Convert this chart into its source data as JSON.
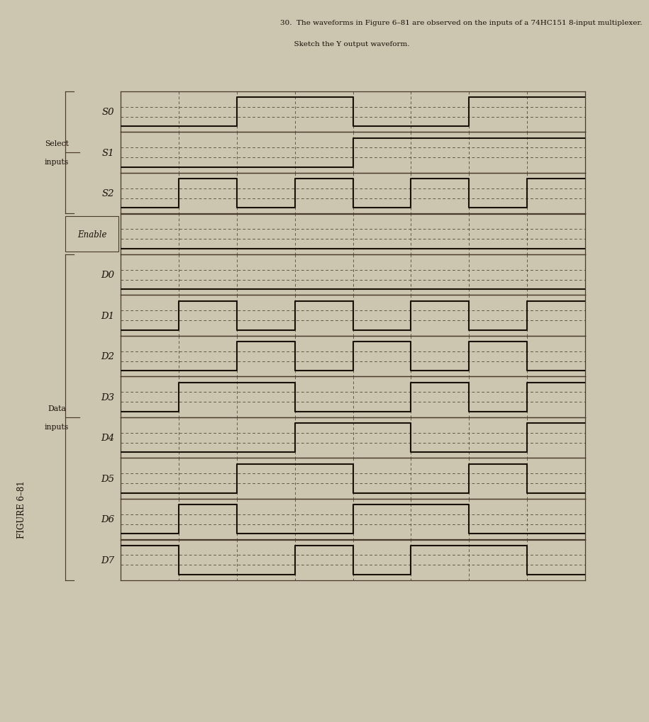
{
  "bg_color": "#ccc5b0",
  "grid_color": "#4a3a2a",
  "wave_color": "#1a1008",
  "text_color": "#1a1008",
  "signals": [
    "S0",
    "S1",
    "S2",
    "Enable",
    "D0",
    "D1",
    "D2",
    "D3",
    "D4",
    "D5",
    "D6",
    "D7"
  ],
  "num_cols": 8,
  "waveforms": {
    "S0": [
      0,
      0,
      1,
      1,
      0,
      0,
      1,
      1
    ],
    "S1": [
      0,
      0,
      0,
      0,
      1,
      1,
      1,
      1
    ],
    "S2": [
      0,
      1,
      0,
      1,
      0,
      1,
      0,
      1
    ],
    "Enable": [
      0,
      0,
      0,
      0,
      0,
      0,
      0,
      0
    ],
    "D0": [
      0,
      0,
      0,
      0,
      0,
      0,
      0,
      0
    ],
    "D1": [
      0,
      1,
      0,
      1,
      0,
      1,
      0,
      1
    ],
    "D2": [
      0,
      0,
      1,
      0,
      1,
      0,
      1,
      0
    ],
    "D3": [
      0,
      1,
      1,
      0,
      0,
      1,
      0,
      1
    ],
    "D4": [
      0,
      0,
      0,
      1,
      1,
      0,
      0,
      1
    ],
    "D5": [
      0,
      0,
      1,
      1,
      0,
      0,
      1,
      0
    ],
    "D6": [
      0,
      1,
      0,
      0,
      1,
      1,
      0,
      0
    ],
    "D7": [
      1,
      0,
      0,
      1,
      0,
      1,
      1,
      0
    ]
  },
  "title_line1": "30.  The waveforms in Figure 6–81 are observed on the inputs of a 74HC151 8-input multiplexer.",
  "title_line2": "      Sketch the Y output waveform.",
  "figure_label": "FIGURE 6–81",
  "select_label": [
    "Select",
    "inputs"
  ],
  "data_label": [
    "Data",
    "inputs"
  ],
  "enable_label": "Enable"
}
